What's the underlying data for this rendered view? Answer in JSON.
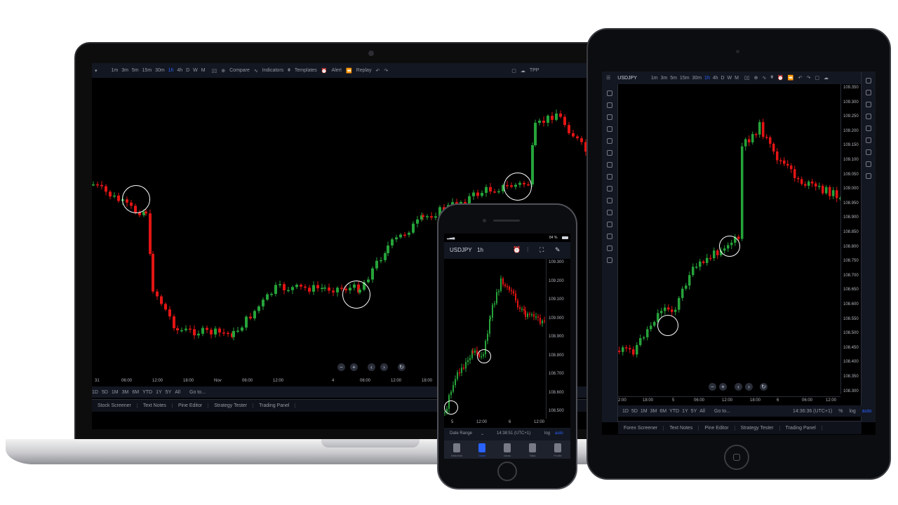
{
  "colors": {
    "up": "#26a33a",
    "down": "#e31414",
    "panel": "#131722",
    "accent": "#2962ff"
  },
  "laptop": {
    "toolbar": {
      "timeframes": [
        "1m",
        "3m",
        "5m",
        "15m",
        "30m",
        "1h",
        "4h",
        "D",
        "W",
        "M"
      ],
      "active_timeframe": "1h",
      "compare": "Compare",
      "indicators": "Indicators",
      "templates": "Templates",
      "alert": "Alert",
      "replay": "Replay",
      "tpp": "TPP"
    },
    "x_labels": [
      "31",
      "06:00",
      "12:00",
      "18:00",
      "Nov",
      "06:00",
      "12:00",
      "4",
      "06:00",
      "12:00",
      "18:00"
    ],
    "ranges": [
      "1D",
      "5D",
      "1M",
      "3M",
      "6M",
      "YTD",
      "1Y",
      "5Y",
      "All"
    ],
    "goto": "Go to...",
    "tabs": [
      "Stock Screener",
      "Text Notes",
      "Pine Editor",
      "Strategy Tester",
      "Trading Panel"
    ]
  },
  "tablet": {
    "symbol": "USDJPY",
    "timeframes": [
      "1m",
      "3m",
      "5m",
      "15m",
      "30m",
      "1h",
      "4h",
      "D",
      "W",
      "M"
    ],
    "active_timeframe": "1h",
    "y_labels": [
      "109.350",
      "109.300",
      "109.250",
      "109.200",
      "109.150",
      "109.100",
      "109.050",
      "109.000",
      "108.950",
      "108.900",
      "108.850",
      "108.800",
      "108.750",
      "108.700",
      "108.650",
      "108.600",
      "108.550",
      "108.500",
      "108.450",
      "108.400",
      "108.350",
      "108.300"
    ],
    "x_labels": [
      "2:00",
      "18:00",
      "5",
      "06:00",
      "12:00",
      "18:00",
      "6",
      "06:00",
      "12:00"
    ],
    "ranges": [
      "1D",
      "5D",
      "1M",
      "3M",
      "6M",
      "YTD",
      "1Y",
      "5Y",
      "All"
    ],
    "goto": "Go to...",
    "time": "14:36:36 (UTC+1)",
    "percent": "%",
    "log": "log",
    "auto": "auto",
    "tabs": [
      "Forex Screener",
      "Text Notes",
      "Pine Editor",
      "Strategy Tester",
      "Trading Panel"
    ]
  },
  "phone": {
    "battery": "84 %",
    "symbol": "USDJPY",
    "timeframe": "1h",
    "y_labels": [
      "109.300",
      "109.200",
      "109.100",
      "109.000",
      "108.900",
      "108.800",
      "108.700",
      "108.600",
      "108.500"
    ],
    "x_labels": [
      "5",
      "12:00",
      "6",
      "12:00"
    ],
    "date_range": "Date Range",
    "time": "14:38:51 (UTC+1)",
    "log": "log",
    "auto": "auto",
    "nav": [
      "Watchlist",
      "Chart",
      "Ideas",
      "Talks",
      "Profile"
    ],
    "active_nav": "Chart"
  }
}
